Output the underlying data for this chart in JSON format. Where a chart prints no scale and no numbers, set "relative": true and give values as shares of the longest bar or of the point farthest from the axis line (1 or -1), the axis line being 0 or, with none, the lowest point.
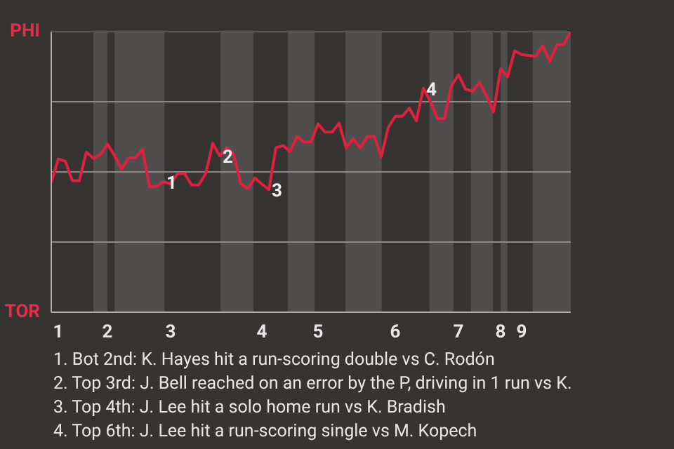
{
  "chart_data": {
    "type": "line",
    "relative": true,
    "grid": "y",
    "categories": [
      null,
      "1",
      null,
      null,
      null,
      null,
      null,
      null,
      "2",
      null,
      null,
      null,
      null,
      null,
      null,
      null,
      null,
      "3",
      null,
      null,
      null,
      null,
      null,
      null,
      null,
      null,
      null,
      null,
      null,
      null,
      "4",
      null,
      null,
      null,
      null,
      null,
      null,
      null,
      "5",
      null,
      null,
      null,
      null,
      null,
      null,
      null,
      null,
      null,
      null,
      "6",
      null,
      null,
      null,
      null,
      null,
      null,
      null,
      null,
      "7",
      null,
      null,
      null,
      null,
      null,
      "8",
      null,
      null,
      "9",
      null,
      null,
      null,
      null,
      null,
      null,
      null
    ],
    "series": [
      {
        "color": "#e0203e",
        "values": [
          0.461,
          0.546,
          0.538,
          0.469,
          0.469,
          0.57,
          0.549,
          0.562,
          0.599,
          0.559,
          0.51,
          0.549,
          0.551,
          0.581,
          0.446,
          0.449,
          0.465,
          0.457,
          0.494,
          0.494,
          0.453,
          0.453,
          0.494,
          0.602,
          0.557,
          0.586,
          0.562,
          0.457,
          0.441,
          0.478,
          0.457,
          0.437,
          0.586,
          0.594,
          0.573,
          0.626,
          0.607,
          0.607,
          0.671,
          0.642,
          0.642,
          0.674,
          0.586,
          0.618,
          0.586,
          0.626,
          0.626,
          0.554,
          0.658,
          0.698,
          0.698,
          0.727,
          0.682,
          0.798,
          0.751,
          0.69,
          0.69,
          0.807,
          0.846,
          0.795,
          0.787,
          0.819,
          0.77,
          0.714,
          0.867,
          0.839,
          0.931,
          0.918,
          0.915,
          0.912,
          0.95,
          0.894,
          0.952,
          0.955,
          1.0
        ]
      }
    ],
    "annotations": [
      "PHI",
      "TOR",
      {
        "text": "1",
        "y": 0.465
      },
      {
        "text": "2",
        "y": 0.557
      },
      {
        "text": "3",
        "y": 0.437
      },
      {
        "text": "4",
        "y": 0.798
      },
      "1. Bot 2nd: K. Hayes hit a run-scoring double vs C. Rodón",
      "2. Top 3rd: J. Bell reached on an error by the P, driving in 1 run vs K.",
      "3. Top 4th: J. Lee hit a solo home run vs K. Bradish",
      "4. Top 6th: J. Lee hit a run-scoring single vs M. Kopech"
    ]
  }
}
